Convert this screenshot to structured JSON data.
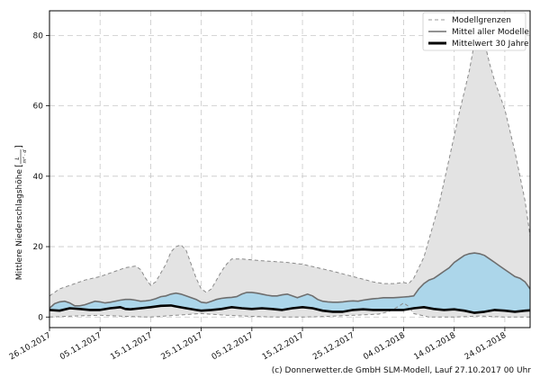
{
  "footer": "(c) Donnerwetter.de GmbH SLM-Modell, Lauf 27.10.2017 00 Uhr",
  "chart_data": {
    "type": "area",
    "ylabel_main": "Mittlere Niederschlagshöhe",
    "ylabel_unit_num": "L",
    "ylabel_unit_den": "m² · d",
    "ylim": [
      -3,
      87
    ],
    "yticks": [
      0,
      20,
      40,
      60,
      80
    ],
    "xlim": [
      0,
      95
    ],
    "xticks": [
      {
        "label": "26.10.2017",
        "day": 0
      },
      {
        "label": "05.11.2017",
        "day": 10
      },
      {
        "label": "15.11.2017",
        "day": 20
      },
      {
        "label": "25.11.2017",
        "day": 30
      },
      {
        "label": "05.12.2017",
        "day": 40
      },
      {
        "label": "15.12.2017",
        "day": 50
      },
      {
        "label": "25.12.2017",
        "day": 60
      },
      {
        "label": "04.01.2018",
        "day": 70
      },
      {
        "label": "14.01.2018",
        "day": 80
      },
      {
        "label": "24.01.2018",
        "day": 90
      }
    ],
    "grid": true,
    "legend_position": "top-right",
    "legend": [
      {
        "label": "Modellgrenzen",
        "style": "dashed",
        "color": "#9a9a9a"
      },
      {
        "label": "Mittel aller Modelle",
        "style": "solid",
        "color": "#6e6e6e"
      },
      {
        "label": "Mittelwert 30 Jahre",
        "style": "bold",
        "color": "#000000"
      }
    ],
    "colors": {
      "envelope_fill": "#e3e3e3",
      "mean_fill": "#acd6ea",
      "bound_line": "#8a8a8a",
      "mean_line": "#6e6e6e",
      "climate_line": "#000000"
    },
    "upper_bound": [
      [
        0,
        6
      ],
      [
        2,
        8
      ],
      [
        4,
        9
      ],
      [
        7,
        10.5
      ],
      [
        10,
        11.5
      ],
      [
        13,
        13
      ],
      [
        15,
        14
      ],
      [
        17,
        14.5
      ],
      [
        18,
        13.5
      ],
      [
        19,
        11
      ],
      [
        20,
        9
      ],
      [
        21,
        10
      ],
      [
        23,
        15
      ],
      [
        24,
        18.5
      ],
      [
        25,
        20
      ],
      [
        26,
        20.5
      ],
      [
        27,
        19
      ],
      [
        28,
        15
      ],
      [
        29,
        11
      ],
      [
        30,
        8
      ],
      [
        31,
        7
      ],
      [
        32,
        8
      ],
      [
        34,
        13
      ],
      [
        35,
        15
      ],
      [
        36,
        16.5
      ],
      [
        38,
        16.5
      ],
      [
        42,
        16
      ],
      [
        47,
        15.5
      ],
      [
        50,
        15
      ],
      [
        53,
        14
      ],
      [
        56,
        13
      ],
      [
        60,
        11.5
      ],
      [
        64,
        10
      ],
      [
        66,
        9.5
      ],
      [
        68,
        9.5
      ],
      [
        70,
        9.8
      ],
      [
        71,
        9.5
      ],
      [
        72,
        11
      ],
      [
        73,
        14
      ],
      [
        74,
        17
      ],
      [
        75,
        22
      ],
      [
        77,
        32
      ],
      [
        79,
        45
      ],
      [
        81,
        58
      ],
      [
        83,
        70
      ],
      [
        84,
        78
      ],
      [
        85,
        80
      ],
      [
        86,
        78
      ],
      [
        87,
        72
      ],
      [
        88,
        67
      ],
      [
        90,
        59
      ],
      [
        92,
        47
      ],
      [
        94,
        33
      ],
      [
        95,
        23
      ]
    ],
    "lower_bound": [
      [
        0,
        0
      ],
      [
        5,
        0.3
      ],
      [
        10,
        0.5
      ],
      [
        15,
        0.2
      ],
      [
        20,
        0
      ],
      [
        25,
        0.5
      ],
      [
        30,
        1
      ],
      [
        35,
        0.5
      ],
      [
        40,
        0.2
      ],
      [
        45,
        0
      ],
      [
        50,
        0
      ],
      [
        55,
        0.2
      ],
      [
        60,
        0.5
      ],
      [
        65,
        0.8
      ],
      [
        67,
        1.5
      ],
      [
        69,
        3
      ],
      [
        70,
        4
      ],
      [
        71,
        3
      ],
      [
        72,
        1
      ],
      [
        75,
        0
      ],
      [
        80,
        0
      ],
      [
        85,
        0.3
      ],
      [
        90,
        0
      ],
      [
        95,
        0
      ]
    ],
    "model_mean": [
      [
        0,
        2.5
      ],
      [
        1,
        3.8
      ],
      [
        2,
        4.3
      ],
      [
        3,
        4.5
      ],
      [
        4,
        4
      ],
      [
        5,
        3.2
      ],
      [
        6,
        3.2
      ],
      [
        7,
        3.5
      ],
      [
        8,
        4
      ],
      [
        9,
        4.5
      ],
      [
        10,
        4.3
      ],
      [
        11,
        4
      ],
      [
        12,
        4.2
      ],
      [
        13,
        4.5
      ],
      [
        14,
        4.8
      ],
      [
        15,
        5
      ],
      [
        16,
        5
      ],
      [
        17,
        4.8
      ],
      [
        18,
        4.5
      ],
      [
        19,
        4.6
      ],
      [
        20,
        4.8
      ],
      [
        21,
        5.2
      ],
      [
        22,
        5.8
      ],
      [
        23,
        6
      ],
      [
        24,
        6.5
      ],
      [
        25,
        6.8
      ],
      [
        26,
        6.5
      ],
      [
        27,
        6
      ],
      [
        28,
        5.5
      ],
      [
        29,
        5
      ],
      [
        30,
        4.2
      ],
      [
        31,
        4
      ],
      [
        32,
        4.5
      ],
      [
        33,
        5
      ],
      [
        34,
        5.3
      ],
      [
        35,
        5.5
      ],
      [
        36,
        5.6
      ],
      [
        37,
        5.8
      ],
      [
        38,
        6.5
      ],
      [
        39,
        7
      ],
      [
        40,
        7
      ],
      [
        41,
        6.8
      ],
      [
        42,
        6.5
      ],
      [
        43,
        6.2
      ],
      [
        44,
        6
      ],
      [
        45,
        6
      ],
      [
        46,
        6.3
      ],
      [
        47,
        6.5
      ],
      [
        48,
        6
      ],
      [
        49,
        5.5
      ],
      [
        50,
        6
      ],
      [
        51,
        6.5
      ],
      [
        52,
        6
      ],
      [
        53,
        5
      ],
      [
        54,
        4.5
      ],
      [
        55,
        4.3
      ],
      [
        56,
        4.2
      ],
      [
        57,
        4.2
      ],
      [
        58,
        4.3
      ],
      [
        59,
        4.5
      ],
      [
        60,
        4.6
      ],
      [
        61,
        4.5
      ],
      [
        62,
        4.8
      ],
      [
        63,
        5
      ],
      [
        64,
        5.2
      ],
      [
        65,
        5.3
      ],
      [
        66,
        5.5
      ],
      [
        67,
        5.5
      ],
      [
        68,
        5.5
      ],
      [
        69,
        5.6
      ],
      [
        70,
        5.7
      ],
      [
        71,
        5.8
      ],
      [
        72,
        6
      ],
      [
        73,
        8
      ],
      [
        74,
        9.5
      ],
      [
        75,
        10.5
      ],
      [
        76,
        11
      ],
      [
        77,
        12
      ],
      [
        78,
        13
      ],
      [
        79,
        14
      ],
      [
        80,
        15.5
      ],
      [
        81,
        16.5
      ],
      [
        82,
        17.5
      ],
      [
        83,
        18
      ],
      [
        84,
        18.2
      ],
      [
        85,
        18
      ],
      [
        86,
        17.5
      ],
      [
        87,
        16.5
      ],
      [
        88,
        15.5
      ],
      [
        89,
        14.5
      ],
      [
        90,
        13.5
      ],
      [
        91,
        12.5
      ],
      [
        92,
        11.5
      ],
      [
        93,
        11
      ],
      [
        94,
        10
      ],
      [
        95,
        8
      ],
      [
        96,
        7
      ],
      [
        97,
        6
      ]
    ],
    "climate_mean": [
      [
        0,
        2
      ],
      [
        2,
        1.8
      ],
      [
        4,
        2.5
      ],
      [
        6,
        2.3
      ],
      [
        8,
        2
      ],
      [
        10,
        2
      ],
      [
        12,
        2.5
      ],
      [
        14,
        2.8
      ],
      [
        15,
        2.3
      ],
      [
        16,
        2.2
      ],
      [
        18,
        2.5
      ],
      [
        20,
        2.8
      ],
      [
        22,
        3.2
      ],
      [
        24,
        3.3
      ],
      [
        25,
        3
      ],
      [
        27,
        2.5
      ],
      [
        29,
        2
      ],
      [
        30,
        1.8
      ],
      [
        32,
        2
      ],
      [
        34,
        2.3
      ],
      [
        36,
        2.8
      ],
      [
        38,
        2.5
      ],
      [
        40,
        2.3
      ],
      [
        42,
        2.5
      ],
      [
        44,
        2.3
      ],
      [
        46,
        2
      ],
      [
        48,
        2.5
      ],
      [
        50,
        2.8
      ],
      [
        52,
        2.5
      ],
      [
        54,
        1.8
      ],
      [
        56,
        1.5
      ],
      [
        58,
        1.5
      ],
      [
        60,
        2
      ],
      [
        62,
        2.2
      ],
      [
        64,
        2
      ],
      [
        66,
        2
      ],
      [
        68,
        2
      ],
      [
        70,
        2
      ],
      [
        72,
        2.5
      ],
      [
        74,
        2.8
      ],
      [
        76,
        2.3
      ],
      [
        78,
        2
      ],
      [
        80,
        2.2
      ],
      [
        82,
        1.8
      ],
      [
        84,
        1.2
      ],
      [
        86,
        1.5
      ],
      [
        88,
        2
      ],
      [
        90,
        1.8
      ],
      [
        92,
        1.5
      ],
      [
        94,
        1.8
      ],
      [
        96,
        2
      ],
      [
        97,
        2
      ]
    ]
  }
}
